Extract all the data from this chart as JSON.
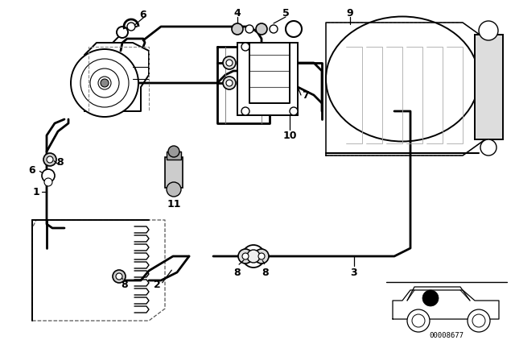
{
  "bg_color": "#ffffff",
  "line_color": "#000000",
  "diagram_code": "00008677",
  "lw_pipe": 1.8,
  "lw_component": 1.4,
  "lw_thin": 0.8,
  "label_fontsize": 9
}
